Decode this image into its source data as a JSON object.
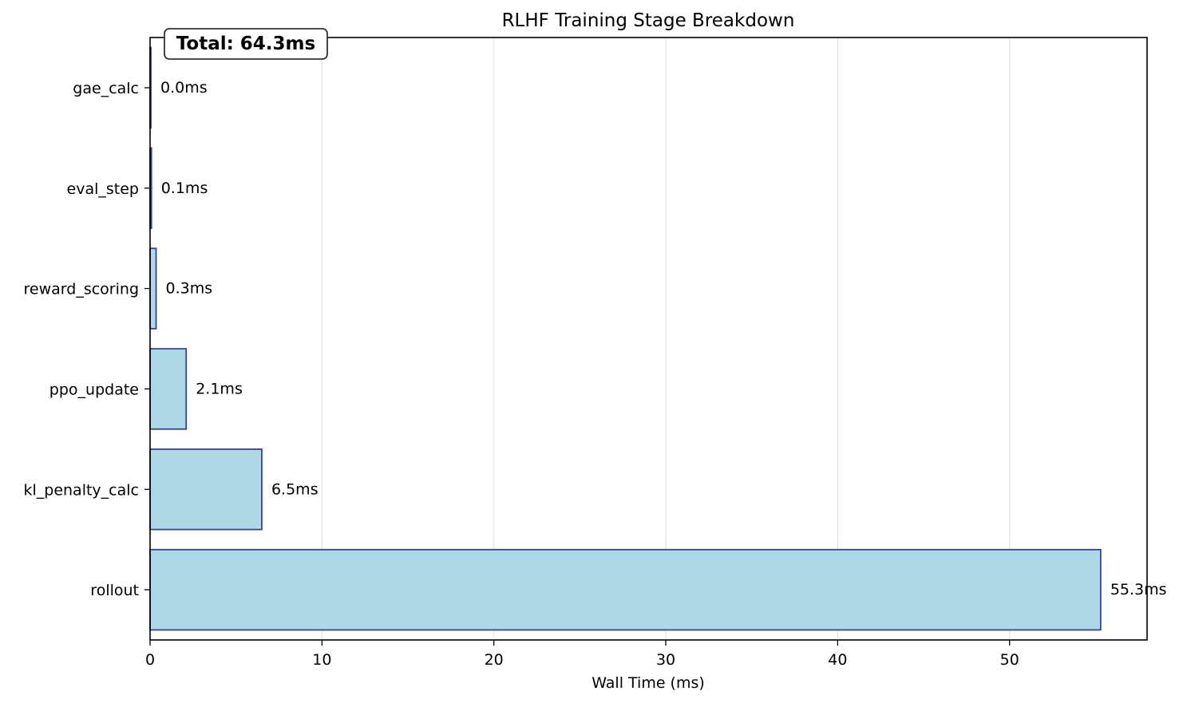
{
  "chart_data": {
    "type": "bar",
    "orientation": "horizontal",
    "title": "RLHF Training Stage Breakdown",
    "xlabel": "Wall Time (ms)",
    "ylabel": "",
    "xlim": [
      0,
      58
    ],
    "xticks": [
      0,
      10,
      20,
      30,
      40,
      50
    ],
    "grid": "x",
    "categories": [
      "gae_calc",
      "eval_step",
      "reward_scoring",
      "ppo_update",
      "kl_penalty_calc",
      "rollout"
    ],
    "values": [
      0.02,
      0.08,
      0.35,
      2.1,
      6.5,
      55.3
    ],
    "value_labels": [
      "0.0ms",
      "0.1ms",
      "0.3ms",
      "2.1ms",
      "6.5ms",
      "55.3ms"
    ],
    "annotation": "Total: 64.3ms",
    "colors": {
      "bar_fill": "#add8e6",
      "bar_edge": "#3a3f9e",
      "grid": "#e6e6e6",
      "axis": "#000000"
    }
  }
}
